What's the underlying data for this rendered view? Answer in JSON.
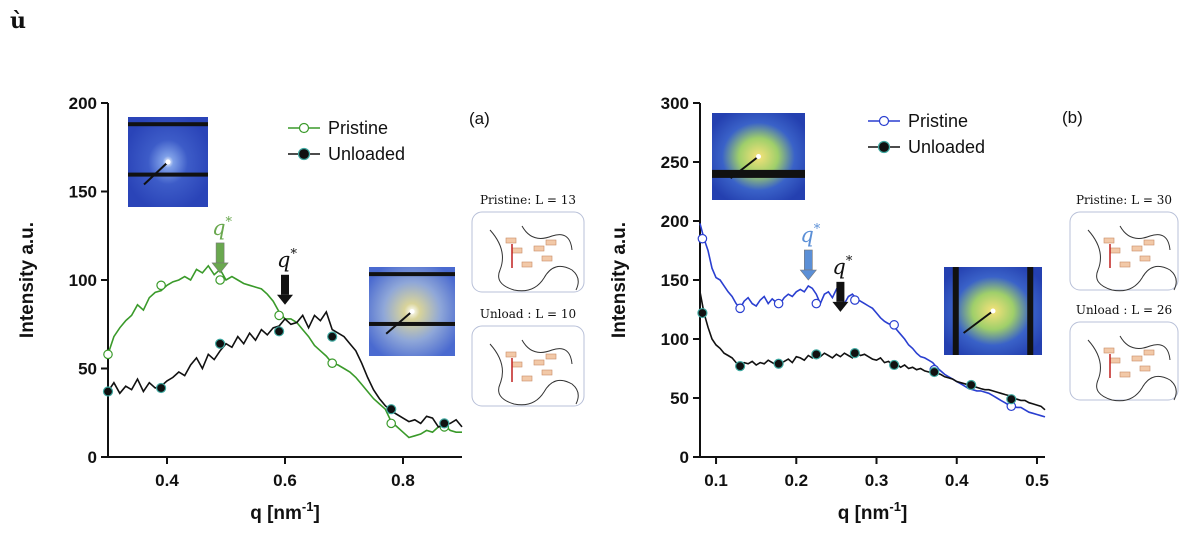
{
  "corner_mark": "ù",
  "chart_data": [
    {
      "type": "line",
      "panel_label": "(a)",
      "xlabel": "q [nm",
      "xlabel_sup": "-1",
      "xlabel_end": "]",
      "ylabel": "Intensity a.u.",
      "xlim": [
        0.3,
        0.9
      ],
      "ylim": [
        0,
        200
      ],
      "xticks": [
        0.4,
        0.6,
        0.8
      ],
      "xtick_labels": [
        "0.4",
        "0.6",
        "0.8"
      ],
      "yticks": [
        0,
        50,
        100,
        150,
        200
      ],
      "ytick_labels": [
        "0",
        "50",
        "100",
        "150",
        "200"
      ],
      "series": [
        {
          "name": "Pristine",
          "color": "#3a9a2a",
          "marker": "open-circle",
          "x": [
            0.3,
            0.31,
            0.32,
            0.33,
            0.34,
            0.35,
            0.36,
            0.37,
            0.38,
            0.39,
            0.4,
            0.41,
            0.42,
            0.43,
            0.44,
            0.45,
            0.46,
            0.47,
            0.48,
            0.49,
            0.5,
            0.51,
            0.52,
            0.53,
            0.54,
            0.55,
            0.56,
            0.57,
            0.58,
            0.59,
            0.6,
            0.61,
            0.62,
            0.63,
            0.64,
            0.65,
            0.66,
            0.67,
            0.68,
            0.69,
            0.7,
            0.71,
            0.72,
            0.73,
            0.74,
            0.75,
            0.76,
            0.77,
            0.78,
            0.79,
            0.8,
            0.81,
            0.82,
            0.83,
            0.84,
            0.85,
            0.86,
            0.87,
            0.88,
            0.89,
            0.9
          ],
          "y": [
            58,
            68,
            73,
            77,
            80,
            86,
            83,
            90,
            93,
            94,
            97,
            99,
            100,
            102,
            100,
            106,
            104,
            108,
            103,
            106,
            100,
            102,
            100,
            98,
            97,
            96,
            95,
            92,
            88,
            82,
            78,
            78,
            76,
            72,
            68,
            63,
            60,
            57,
            53,
            52,
            50,
            48,
            45,
            41,
            37,
            33,
            30,
            27,
            20,
            17,
            14,
            11,
            12,
            13,
            15,
            14,
            17,
            18,
            15,
            14,
            14
          ],
          "marker_x": [
            0.3,
            0.39,
            0.49,
            0.59,
            0.68,
            0.78,
            0.87
          ],
          "marker_y": [
            58,
            97,
            100,
            80,
            53,
            19,
            17
          ]
        },
        {
          "name": "Unloaded",
          "color": "#111111",
          "marker": "filled-circle",
          "x": [
            0.3,
            0.31,
            0.32,
            0.33,
            0.34,
            0.35,
            0.36,
            0.37,
            0.38,
            0.39,
            0.4,
            0.41,
            0.42,
            0.43,
            0.44,
            0.45,
            0.46,
            0.47,
            0.48,
            0.49,
            0.5,
            0.51,
            0.52,
            0.53,
            0.54,
            0.55,
            0.56,
            0.57,
            0.58,
            0.59,
            0.6,
            0.61,
            0.62,
            0.63,
            0.64,
            0.65,
            0.66,
            0.67,
            0.68,
            0.69,
            0.7,
            0.71,
            0.72,
            0.73,
            0.74,
            0.75,
            0.76,
            0.77,
            0.78,
            0.79,
            0.8,
            0.81,
            0.82,
            0.83,
            0.84,
            0.85,
            0.86,
            0.87,
            0.88,
            0.89,
            0.9
          ],
          "y": [
            37,
            42,
            36,
            40,
            38,
            44,
            37,
            42,
            39,
            40,
            43,
            45,
            48,
            46,
            52,
            56,
            50,
            58,
            55,
            60,
            64,
            62,
            68,
            64,
            70,
            66,
            72,
            69,
            73,
            74,
            78,
            75,
            76,
            80,
            73,
            80,
            77,
            82,
            72,
            70,
            68,
            64,
            60,
            53,
            45,
            38,
            33,
            29,
            26,
            24,
            22,
            20,
            21,
            19,
            23,
            22,
            17,
            18,
            19,
            21,
            17
          ],
          "marker_x": [
            0.3,
            0.39,
            0.49,
            0.59,
            0.68,
            0.78,
            0.87
          ],
          "marker_y": [
            37,
            39,
            64,
            71,
            68,
            27,
            19
          ]
        }
      ],
      "annotations": [
        {
          "label": "q",
          "sup": "*",
          "x": 0.49,
          "y": 104,
          "color": "#6aa84f"
        },
        {
          "label": "q",
          "sup": "*",
          "x": 0.6,
          "y": 86,
          "color": "#111111"
        }
      ],
      "model_cards": [
        {
          "label": "Pristine: L = 13"
        },
        {
          "label": "Unload : L = 10"
        }
      ]
    },
    {
      "type": "line",
      "panel_label": "(b)",
      "xlabel": "q [nm",
      "xlabel_sup": "-1",
      "xlabel_end": "]",
      "ylabel": "Intensity a.u.",
      "xlim": [
        0.08,
        0.51
      ],
      "ylim": [
        0,
        300
      ],
      "xticks": [
        0.1,
        0.2,
        0.3,
        0.4,
        0.5
      ],
      "xtick_labels": [
        "0.1",
        "0.2",
        "0.3",
        "0.4",
        "0.5"
      ],
      "yticks": [
        0,
        50,
        100,
        150,
        200,
        250,
        300
      ],
      "ytick_labels": [
        "0",
        "50",
        "100",
        "150",
        "200",
        "250",
        "300"
      ],
      "series": [
        {
          "name": "Pristine",
          "color": "#2a3fd0",
          "marker": "open-circle",
          "x": [
            0.08,
            0.085,
            0.09,
            0.095,
            0.1,
            0.105,
            0.11,
            0.115,
            0.12,
            0.125,
            0.13,
            0.135,
            0.14,
            0.145,
            0.15,
            0.155,
            0.16,
            0.165,
            0.17,
            0.175,
            0.18,
            0.185,
            0.19,
            0.195,
            0.2,
            0.205,
            0.21,
            0.215,
            0.22,
            0.225,
            0.23,
            0.235,
            0.24,
            0.245,
            0.25,
            0.255,
            0.26,
            0.265,
            0.27,
            0.275,
            0.28,
            0.285,
            0.29,
            0.295,
            0.3,
            0.305,
            0.31,
            0.315,
            0.32,
            0.325,
            0.33,
            0.335,
            0.34,
            0.345,
            0.35,
            0.355,
            0.36,
            0.365,
            0.37,
            0.375,
            0.38,
            0.385,
            0.39,
            0.395,
            0.4,
            0.405,
            0.41,
            0.415,
            0.42,
            0.425,
            0.43,
            0.435,
            0.44,
            0.445,
            0.45,
            0.455,
            0.46,
            0.465,
            0.47,
            0.475,
            0.48,
            0.485,
            0.49,
            0.495,
            0.5,
            0.505,
            0.51
          ],
          "y": [
            198,
            185,
            175,
            160,
            152,
            150,
            145,
            140,
            136,
            130,
            126,
            132,
            135,
            130,
            128,
            133,
            136,
            130,
            134,
            131,
            130,
            135,
            138,
            136,
            140,
            142,
            140,
            145,
            143,
            138,
            130,
            138,
            140,
            135,
            142,
            138,
            130,
            136,
            138,
            134,
            132,
            130,
            128,
            126,
            122,
            118,
            115,
            113,
            112,
            108,
            104,
            100,
            95,
            92,
            88,
            85,
            84,
            82,
            80,
            76,
            73,
            70,
            68,
            66,
            64,
            62,
            60,
            58,
            57,
            56,
            56,
            55,
            54,
            52,
            50,
            48,
            46,
            44,
            43,
            42,
            42,
            40,
            38,
            37,
            36,
            35,
            34
          ],
          "marker_x": [
            0.083,
            0.13,
            0.178,
            0.225,
            0.273,
            0.322,
            0.372,
            0.418,
            0.468
          ],
          "marker_y": [
            185,
            126,
            130,
            130,
            133,
            112,
            74,
            61,
            43
          ]
        },
        {
          "name": "Unloaded",
          "color": "#111111",
          "marker": "filled-circle",
          "x": [
            0.08,
            0.085,
            0.09,
            0.095,
            0.1,
            0.105,
            0.11,
            0.115,
            0.12,
            0.125,
            0.13,
            0.135,
            0.14,
            0.145,
            0.15,
            0.155,
            0.16,
            0.165,
            0.17,
            0.175,
            0.18,
            0.185,
            0.19,
            0.195,
            0.2,
            0.205,
            0.21,
            0.215,
            0.22,
            0.225,
            0.23,
            0.235,
            0.24,
            0.245,
            0.25,
            0.255,
            0.26,
            0.265,
            0.27,
            0.275,
            0.28,
            0.285,
            0.29,
            0.295,
            0.3,
            0.305,
            0.31,
            0.315,
            0.32,
            0.325,
            0.33,
            0.335,
            0.34,
            0.345,
            0.35,
            0.355,
            0.36,
            0.365,
            0.37,
            0.375,
            0.38,
            0.385,
            0.39,
            0.395,
            0.4,
            0.405,
            0.41,
            0.415,
            0.42,
            0.425,
            0.43,
            0.435,
            0.44,
            0.445,
            0.45,
            0.455,
            0.46,
            0.465,
            0.47,
            0.475,
            0.48,
            0.485,
            0.49,
            0.495,
            0.5,
            0.505,
            0.51
          ],
          "y": [
            140,
            122,
            110,
            100,
            95,
            92,
            88,
            86,
            84,
            80,
            77,
            80,
            79,
            81,
            78,
            80,
            79,
            82,
            80,
            78,
            79,
            81,
            83,
            80,
            85,
            84,
            82,
            86,
            84,
            87,
            85,
            88,
            86,
            84,
            87,
            85,
            88,
            86,
            84,
            88,
            86,
            87,
            85,
            83,
            82,
            84,
            80,
            81,
            78,
            79,
            76,
            78,
            75,
            76,
            74,
            75,
            73,
            72,
            72,
            71,
            70,
            68,
            67,
            66,
            64,
            63,
            62,
            61,
            60,
            59,
            58,
            57,
            57,
            56,
            55,
            54,
            53,
            52,
            50,
            49,
            48,
            48,
            46,
            45,
            44,
            43,
            40
          ],
          "marker_x": [
            0.083,
            0.13,
            0.178,
            0.225,
            0.273,
            0.322,
            0.372,
            0.418,
            0.468
          ],
          "marker_y": [
            122,
            77,
            79,
            87,
            88,
            78,
            72,
            61,
            49
          ]
        }
      ],
      "annotations": [
        {
          "label": "q",
          "sup": "*",
          "x": 0.215,
          "y": 150,
          "color": "#5b8fd6"
        },
        {
          "label": "q",
          "sup": "*",
          "x": 0.255,
          "y": 123,
          "color": "#111111"
        }
      ],
      "model_cards": [
        {
          "label": "Pristine: L = 30"
        },
        {
          "label": "Unload : L = 26"
        }
      ]
    }
  ]
}
